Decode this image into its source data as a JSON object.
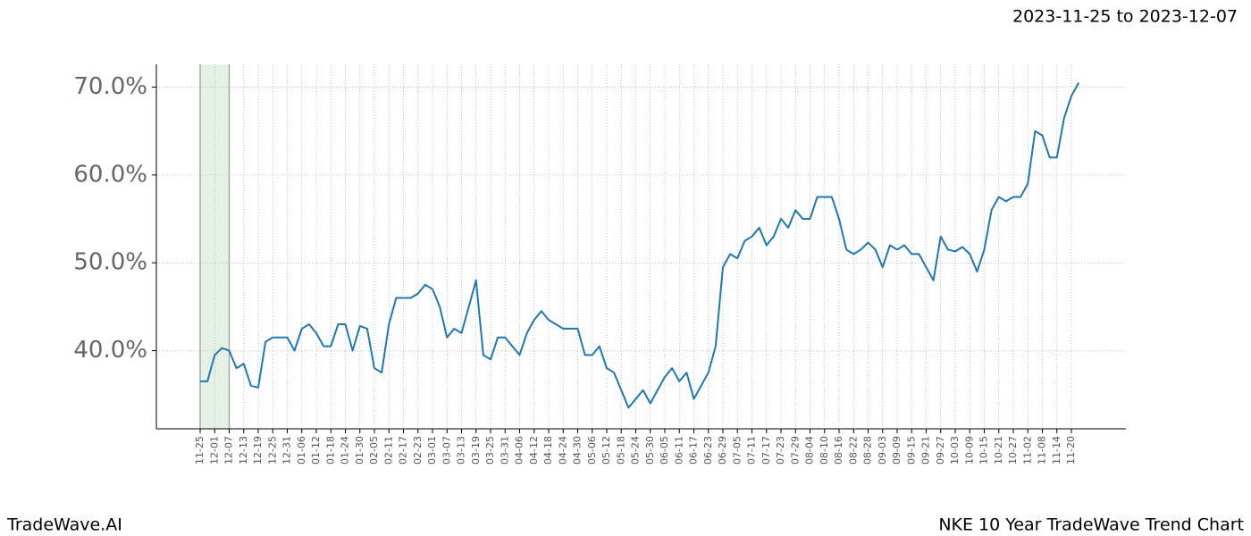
{
  "header": {
    "date_range": "2023-11-25 to 2023-12-07"
  },
  "footer": {
    "brand": "TradeWave.AI",
    "caption": "NKE 10 Year TradeWave Trend Chart"
  },
  "chart_data": {
    "type": "line",
    "categories": [
      "11-25",
      null,
      "12-01",
      null,
      "12-07",
      null,
      "12-13",
      null,
      "12-19",
      null,
      "12-25",
      null,
      "12-31",
      null,
      "01-06",
      null,
      "01-12",
      null,
      "01-18",
      null,
      "01-24",
      null,
      "01-30",
      null,
      "02-05",
      null,
      "02-11",
      null,
      "02-17",
      null,
      "02-23",
      null,
      "03-01",
      null,
      "03-07",
      null,
      "03-13",
      null,
      "03-19",
      null,
      "03-25",
      null,
      "03-31",
      null,
      "04-06",
      null,
      "04-12",
      null,
      "04-18",
      null,
      "04-24",
      null,
      "04-30",
      null,
      "05-06",
      null,
      "05-12",
      null,
      "05-18",
      null,
      "05-24",
      null,
      "05-30",
      null,
      "06-05",
      null,
      "06-11",
      null,
      "06-17",
      null,
      "06-23",
      null,
      "06-29",
      null,
      "07-05",
      null,
      "07-11",
      null,
      "07-17",
      null,
      "07-23",
      null,
      "07-29",
      null,
      "08-04",
      null,
      "08-10",
      null,
      "08-16",
      null,
      "08-22",
      null,
      "08-28",
      null,
      "09-03",
      null,
      "09-09",
      null,
      "09-15",
      null,
      "09-21",
      null,
      "09-27",
      null,
      "10-03",
      null,
      "10-09",
      null,
      "10-15",
      null,
      "10-21",
      null,
      "10-27",
      null,
      "11-02",
      null,
      "11-08",
      null,
      "11-14",
      null,
      "11-20",
      null
    ],
    "series": [
      {
        "color": "#1f77b4",
        "values": [
          36.5,
          36.5,
          39.5,
          40.3,
          40,
          38,
          38.5,
          36,
          35.8,
          41,
          41.5,
          41.5,
          41.5,
          40,
          42.5,
          43,
          42,
          40.5,
          40.5,
          43,
          43,
          40,
          42.8,
          42.5,
          38,
          37.5,
          43,
          46,
          46,
          46,
          46.5,
          47.5,
          47,
          45,
          41.5,
          42.5,
          42,
          45,
          48,
          39.5,
          39,
          41.5,
          41.5,
          40.5,
          39.5,
          42,
          43.5,
          44.5,
          43.5,
          43,
          42.5,
          42.5,
          42.5,
          39.5,
          39.5,
          40.5,
          38,
          37.5,
          35.5,
          33.5,
          34.5,
          35.5,
          34,
          35.5,
          37,
          38,
          36.5,
          37.5,
          34.5,
          36,
          37.5,
          40.5,
          49.5,
          51,
          50.5,
          52.5,
          53,
          54,
          52,
          53,
          55,
          54,
          56,
          55,
          55,
          57.5,
          57.5,
          57.5,
          55,
          51.5,
          51,
          51.5,
          52.3,
          51.5,
          49.5,
          52,
          51.5,
          52,
          51,
          51,
          49.5,
          48,
          53,
          51.5,
          51.3,
          51.8,
          51,
          49,
          51.5,
          56,
          57.5,
          57,
          57.5,
          57.5,
          59,
          65,
          64.5,
          62,
          62,
          66.5,
          69,
          70.5
        ]
      }
    ],
    "highlight_range": [
      "11-25",
      "12-07"
    ],
    "highlight_color": "#d5e8d4",
    "ylim": [
      31.1,
      72.6
    ],
    "yticks": [
      {
        "value": 40,
        "label": "40.0%"
      },
      {
        "value": 50,
        "label": "50.0%"
      },
      {
        "value": 60,
        "label": "60.0%"
      },
      {
        "value": 70,
        "label": "70.0%"
      }
    ],
    "grid": true
  }
}
